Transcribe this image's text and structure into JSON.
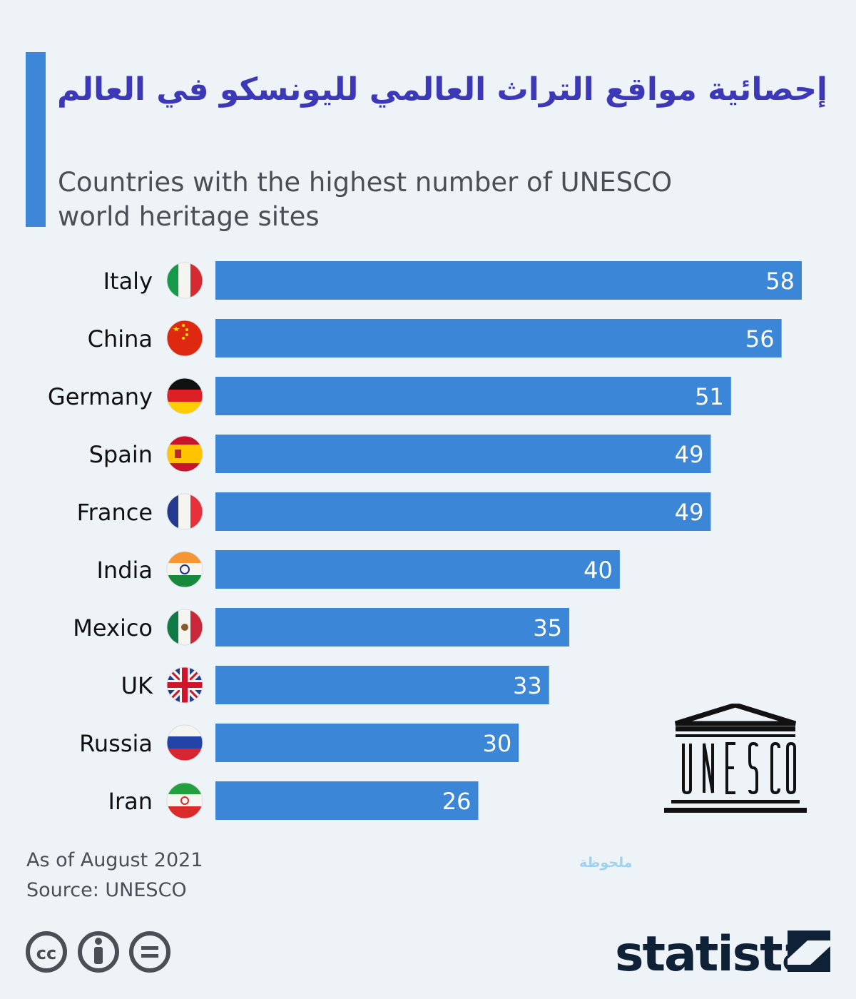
{
  "title_ar": "إحصائية مواقع التراث العالمي لليونسكو في العالم",
  "subtitle": "Countries with the highest number of UNESCO world heritage sites",
  "note_ar": "ملحوظة",
  "footer": {
    "as_of": "As of August 2021",
    "source": "Source: UNESCO",
    "brand": "statista"
  },
  "unesco_logo_text": "UNESCO",
  "colors": {
    "bar": "#3b86d6",
    "title": "#3c38b8",
    "accent": "#3d86d8"
  },
  "chart_data": {
    "type": "bar",
    "orientation": "horizontal",
    "categories": [
      "Italy",
      "China",
      "Germany",
      "Spain",
      "France",
      "India",
      "Mexico",
      "UK",
      "Russia",
      "Iran"
    ],
    "values": [
      58,
      56,
      51,
      49,
      49,
      40,
      35,
      33,
      30,
      26
    ],
    "flags": [
      "italy-flag-icon",
      "china-flag-icon",
      "germany-flag-icon",
      "spain-flag-icon",
      "france-flag-icon",
      "india-flag-icon",
      "mexico-flag-icon",
      "uk-flag-icon",
      "russia-flag-icon",
      "iran-flag-icon"
    ],
    "title": "Countries with the highest number of UNESCO world heritage sites",
    "xlabel": "",
    "ylabel": "",
    "xlim": [
      0,
      58
    ],
    "grid": false,
    "legend": "none"
  }
}
